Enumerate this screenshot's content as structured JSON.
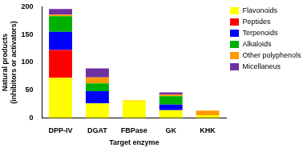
{
  "chart_data": {
    "type": "bar",
    "stacked": true,
    "categories": [
      "DPP-IV",
      "DGAT",
      "FBPase",
      "GK",
      "KHK"
    ],
    "series": [
      {
        "name": "Flavonoids",
        "color": "#ffff00",
        "values": [
          72,
          26,
          31,
          14,
          5
        ]
      },
      {
        "name": "Peptides",
        "color": "#ff0000",
        "values": [
          50,
          0,
          0,
          0,
          0
        ]
      },
      {
        "name": "Terpenoids",
        "color": "#0000ff",
        "values": [
          33,
          22,
          0,
          10,
          0
        ]
      },
      {
        "name": "Alkaloids",
        "color": "#00b000",
        "values": [
          28,
          14,
          0,
          15,
          0
        ]
      },
      {
        "name": "Other polyphenols",
        "color": "#ff9900",
        "values": [
          3,
          11,
          1,
          3,
          8
        ]
      },
      {
        "name": "Micellaneus",
        "color": "#7030a0",
        "values": [
          10,
          16,
          0,
          4,
          0
        ]
      }
    ],
    "x_label": "Target enzyme",
    "y_label": [
      "Natural products",
      "(inhibitors or activators)"
    ],
    "ylim": [
      0,
      200
    ],
    "yticks": [
      0,
      50,
      100,
      150,
      200
    ],
    "grid": false,
    "legend": "right"
  }
}
